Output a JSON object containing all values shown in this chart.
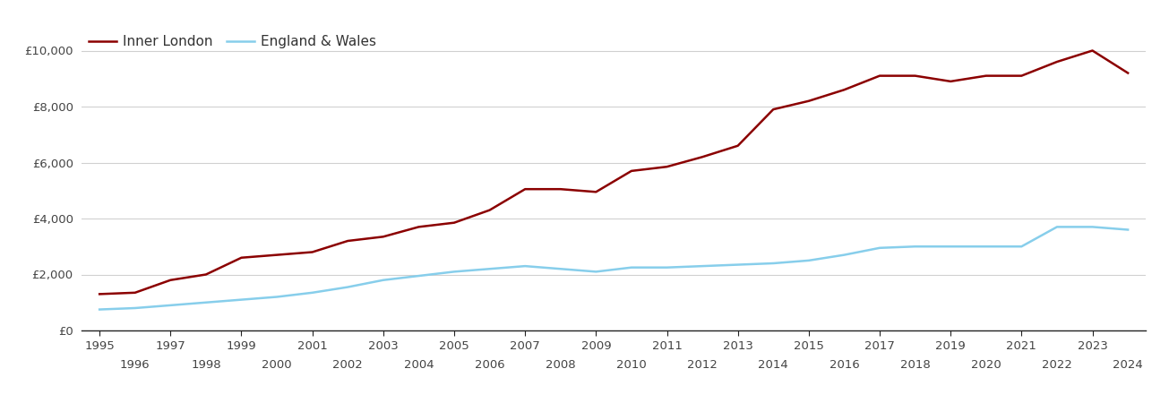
{
  "inner_london_years": [
    1995,
    1996,
    1997,
    1998,
    1999,
    2000,
    2001,
    2002,
    2003,
    2004,
    2005,
    2006,
    2007,
    2008,
    2009,
    2010,
    2011,
    2012,
    2013,
    2014,
    2015,
    2016,
    2017,
    2018,
    2019,
    2020,
    2021,
    2022,
    2023,
    2024
  ],
  "inner_london_values": [
    1300,
    1350,
    1800,
    2000,
    2600,
    2700,
    2800,
    3200,
    3350,
    3700,
    3850,
    4300,
    5050,
    5050,
    4950,
    5700,
    5850,
    6200,
    6600,
    7900,
    8200,
    8600,
    9100,
    9100,
    8900,
    9100,
    9100,
    9600,
    10000,
    9200
  ],
  "england_wales_years": [
    1995,
    1996,
    1997,
    1998,
    1999,
    2000,
    2001,
    2002,
    2003,
    2004,
    2005,
    2006,
    2007,
    2008,
    2009,
    2010,
    2011,
    2012,
    2013,
    2014,
    2015,
    2016,
    2017,
    2018,
    2019,
    2020,
    2021,
    2022,
    2023,
    2024
  ],
  "england_wales_values": [
    750,
    800,
    900,
    1000,
    1100,
    1200,
    1350,
    1550,
    1800,
    1950,
    2100,
    2200,
    2300,
    2200,
    2100,
    2250,
    2250,
    2300,
    2350,
    2400,
    2500,
    2700,
    2950,
    3000,
    3000,
    3000,
    3000,
    3700,
    3700,
    3600
  ],
  "inner_london_color": "#8B0000",
  "england_wales_color": "#87CEEB",
  "inner_london_label": "Inner London",
  "england_wales_label": "England & Wales",
  "yticks": [
    0,
    2000,
    4000,
    6000,
    8000,
    10000
  ],
  "ytick_labels": [
    "£0",
    "£2,000",
    "£4,000",
    "£6,000",
    "£8,000",
    "£10,000"
  ],
  "ylim": [
    0,
    10800
  ],
  "xlim_min": 1994.5,
  "xlim_max": 2024.5,
  "background_color": "#ffffff",
  "grid_color": "#d0d0d0",
  "line_width": 1.8,
  "legend_fontsize": 11,
  "tick_fontsize": 9.5
}
